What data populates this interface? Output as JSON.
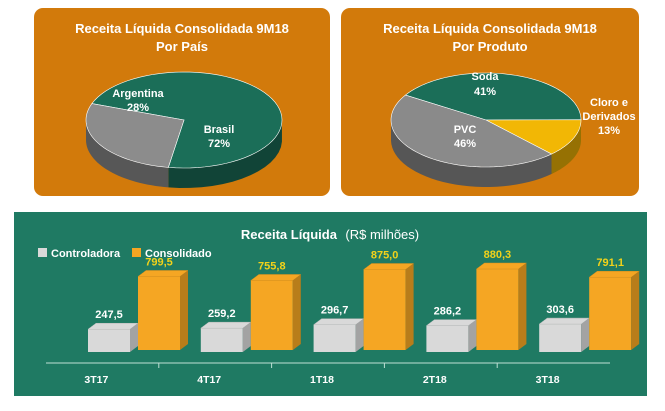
{
  "chart_data": [
    {
      "type": "pie",
      "title": "Receita Líquida Consolidada 9M18",
      "subtitle": "Por País",
      "slices": [
        {
          "label": "Brasil",
          "value": 72,
          "value_label": "72%",
          "color": "#1b6e58"
        },
        {
          "label": "Argentina",
          "value": 28,
          "value_label": "28%",
          "color": "#8c8c8c"
        }
      ]
    },
    {
      "type": "pie",
      "title": "Receita Líquida Consolidada 9M18",
      "subtitle": "Por Produto",
      "slices": [
        {
          "label": "Soda",
          "value": 41,
          "value_label": "41%",
          "color": "#1b6e58"
        },
        {
          "label": "Cloro e Derivados",
          "label_lines": [
            "Cloro e",
            "Derivados"
          ],
          "value": 13,
          "value_label": "13%",
          "color": "#f2b705"
        },
        {
          "label": "PVC",
          "value": 46,
          "value_label": "46%",
          "color": "#8a8a8a"
        }
      ]
    },
    {
      "type": "bar",
      "title": "Receita Líquida",
      "title_suffix": "(R$ milhões)",
      "categories": [
        "3T17",
        "4T17",
        "1T18",
        "2T18",
        "3T18"
      ],
      "series": [
        {
          "name": "Controladora",
          "values": [
            247.5,
            259.2,
            296.7,
            286.2,
            303.6
          ],
          "value_labels": [
            "247,5",
            "259,2",
            "296,7",
            "286,2",
            "303,6"
          ],
          "color": "#d9d9d9"
        },
        {
          "name": "Consolidado",
          "values": [
            799.5,
            755.8,
            875.0,
            880.3,
            791.1
          ],
          "value_labels": [
            "799,5",
            "755,8",
            "875,0",
            "880,3",
            "791,1"
          ],
          "color": "#f5a623"
        }
      ],
      "legend_position": "top-left",
      "grid": false
    }
  ],
  "colors": {
    "panel_orange": "#d27a0b",
    "panel_green": "#1f7a63",
    "label_yellow": "#f2d21a"
  }
}
